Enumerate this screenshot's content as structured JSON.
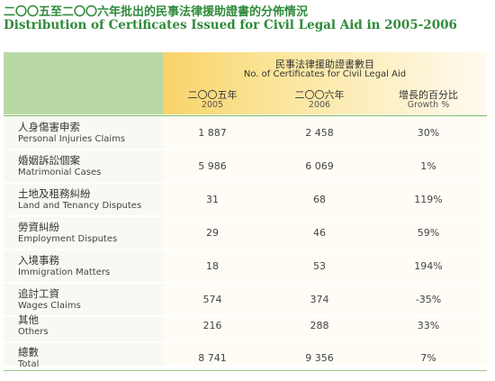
{
  "title": {
    "zh": "二〇〇五至二〇〇六年批出的民事法律援助證書的分佈情況",
    "en": "Distribution of Certificates Issued for Civil Legal Aid in 2005-2006"
  },
  "header": {
    "group_zh": "民事法律援助證書數目",
    "group_en": "No. of Certificates for Civil Legal Aid",
    "columns": [
      {
        "zh": "二〇〇五年",
        "en": "2005"
      },
      {
        "zh": "二〇〇六年",
        "en": "2006"
      },
      {
        "zh": "增長的百分比",
        "en": "Growth %"
      }
    ]
  },
  "rows": [
    {
      "zh": "人身傷害申索",
      "en": "Personal Injuries Claims",
      "y2005": "1 887",
      "y2006": "2 458",
      "growth": "30%"
    },
    {
      "zh": "婚姻訴訟個案",
      "en": "Matrimonial Cases",
      "y2005": "5 986",
      "y2006": "6 069",
      "growth": "1%"
    },
    {
      "zh": "土地及租務糾紛",
      "en": "Land and Tenancy Disputes",
      "y2005": "31",
      "y2006": "68",
      "growth": "119%"
    },
    {
      "zh": "勞資糾紛",
      "en": "Employment Disputes",
      "y2005": "29",
      "y2006": "46",
      "growth": "59%"
    },
    {
      "zh": "入境事務",
      "en": "Immigration Matters",
      "y2005": "18",
      "y2006": "53",
      "growth": "194%"
    },
    {
      "zh": "追討工資",
      "en": "Wages Claims",
      "y2005": "574",
      "y2006": "374",
      "growth": "-35%"
    },
    {
      "zh": "其他",
      "en": "Others",
      "y2005": "216",
      "y2006": "288",
      "growth": "33%"
    },
    {
      "zh": "總數",
      "en": "Total",
      "y2005": "8 741",
      "y2006": "9 356",
      "growth": "7%"
    }
  ]
}
